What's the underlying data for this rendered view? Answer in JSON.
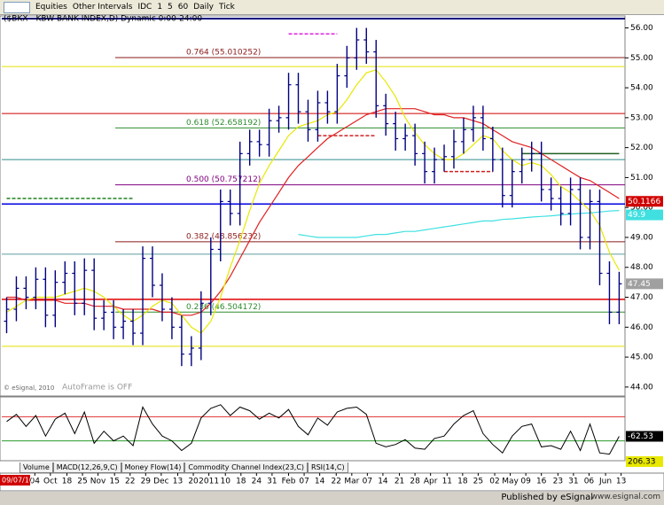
{
  "toolbar": {
    "items": [
      "Equities",
      "Other Intervals",
      "IDC",
      "1",
      "5",
      "60",
      "Daily",
      "Tick"
    ]
  },
  "chart_data": [
    {
      "type": "ohlc",
      "title": "($BKX - KBW BANK INDEX,D) Dynamic 0:00-24:00",
      "color": "#000080",
      "open": [
        46.2,
        46.6,
        47.3,
        47.0,
        47.6,
        46.4,
        47.5,
        47.8,
        46.8,
        47.9,
        46.3,
        46.5,
        46.0,
        46.2,
        45.8,
        48.3,
        47.4,
        46.6,
        46.0,
        45.1,
        45.3,
        46.8,
        48.6,
        50.2,
        49.8,
        51.8,
        52.2,
        52.1,
        52.9,
        53.0,
        54.1,
        53.2,
        52.6,
        53.5,
        53.2,
        54.4,
        55.0,
        55.6,
        55.2,
        53.4,
        52.8,
        52.3,
        52.4,
        51.8,
        51.2,
        51.6,
        51.7,
        52.2,
        52.6,
        53.0,
        52.3,
        51.6,
        50.4,
        51.2,
        51.6,
        51.8,
        50.6,
        50.3,
        49.8,
        50.6,
        49.0,
        50.2,
        47.8,
        46.5
      ],
      "high": [
        47.0,
        47.7,
        47.7,
        48.0,
        48.0,
        47.9,
        48.2,
        48.2,
        48.3,
        48.3,
        46.9,
        46.9,
        46.6,
        46.6,
        48.7,
        48.7,
        47.8,
        47.0,
        46.4,
        45.7,
        47.2,
        49.0,
        50.6,
        50.6,
        52.2,
        52.6,
        52.6,
        53.3,
        53.4,
        54.5,
        54.5,
        53.6,
        53.9,
        53.9,
        54.8,
        55.4,
        56.0,
        56.0,
        55.6,
        53.8,
        53.2,
        52.8,
        52.8,
        52.2,
        52.0,
        52.1,
        52.6,
        53.0,
        53.4,
        53.4,
        52.7,
        52.0,
        51.6,
        52.0,
        52.2,
        52.2,
        51.0,
        50.7,
        51.0,
        51.0,
        50.6,
        50.6,
        48.2,
        47.85
      ],
      "low": [
        45.8,
        46.2,
        46.6,
        46.6,
        46.0,
        46.0,
        47.1,
        46.4,
        46.4,
        45.9,
        45.9,
        45.6,
        45.6,
        45.4,
        45.4,
        47.0,
        46.2,
        45.6,
        44.7,
        44.7,
        44.9,
        46.4,
        48.2,
        49.4,
        49.4,
        51.4,
        51.7,
        51.7,
        52.5,
        52.6,
        52.8,
        52.2,
        52.2,
        52.8,
        52.8,
        54.0,
        54.6,
        54.8,
        53.0,
        52.4,
        51.9,
        51.9,
        51.4,
        50.8,
        50.8,
        51.2,
        51.3,
        51.8,
        52.2,
        51.9,
        51.2,
        50.0,
        50.0,
        50.8,
        51.2,
        50.2,
        49.9,
        49.4,
        49.4,
        48.6,
        48.6,
        47.4,
        46.1,
        46.1
      ],
      "close": [
        46.6,
        47.3,
        47.0,
        47.6,
        46.4,
        47.5,
        47.8,
        46.8,
        47.9,
        46.3,
        46.5,
        46.0,
        46.2,
        45.8,
        48.3,
        47.4,
        46.6,
        46.0,
        45.1,
        45.3,
        46.8,
        48.6,
        50.2,
        49.8,
        51.8,
        52.2,
        52.1,
        52.9,
        53.0,
        54.1,
        53.2,
        52.6,
        53.5,
        53.2,
        54.4,
        55.0,
        55.6,
        55.2,
        53.4,
        52.8,
        52.3,
        52.4,
        51.8,
        51.2,
        51.6,
        51.7,
        52.2,
        52.6,
        53.0,
        52.3,
        51.6,
        50.4,
        51.2,
        51.6,
        51.8,
        50.6,
        50.3,
        49.8,
        50.6,
        49.0,
        50.2,
        47.8,
        46.5,
        47.45
      ],
      "overlays": [
        {
          "color": "#e02020",
          "values": [
            47.0,
            47.0,
            46.9,
            46.9,
            46.9,
            46.9,
            46.8,
            46.8,
            46.8,
            46.7,
            46.7,
            46.7,
            46.6,
            46.6,
            46.6,
            46.6,
            46.5,
            46.5,
            46.4,
            46.4,
            46.5,
            46.8,
            47.2,
            47.7,
            48.3,
            48.9,
            49.5,
            50.0,
            50.5,
            51.0,
            51.4,
            51.7,
            52.0,
            52.3,
            52.5,
            52.7,
            52.9,
            53.1,
            53.2,
            53.3,
            53.3,
            53.3,
            53.3,
            53.2,
            53.1,
            53.1,
            53.0,
            53.0,
            52.9,
            52.8,
            52.6,
            52.4,
            52.2,
            52.1,
            52.0,
            51.8,
            51.6,
            51.4,
            51.2,
            51.0,
            50.9,
            50.7,
            50.5,
            50.3
          ]
        },
        {
          "color": "#e8e800",
          "values": [
            46.5,
            46.7,
            46.9,
            47.0,
            47.0,
            47.0,
            47.1,
            47.2,
            47.3,
            47.2,
            47.0,
            46.7,
            46.4,
            46.2,
            46.4,
            46.7,
            46.9,
            46.8,
            46.4,
            46.0,
            45.8,
            46.2,
            47.0,
            48.0,
            48.9,
            49.9,
            50.8,
            51.4,
            51.9,
            52.4,
            52.7,
            52.8,
            52.9,
            53.1,
            53.2,
            53.6,
            54.1,
            54.5,
            54.6,
            54.2,
            53.7,
            53.0,
            52.5,
            52.1,
            51.8,
            51.6,
            51.6,
            51.8,
            52.1,
            52.4,
            52.3,
            51.9,
            51.6,
            51.4,
            51.5,
            51.4,
            51.1,
            50.7,
            50.5,
            50.2,
            49.9,
            49.4,
            48.5,
            47.9
          ]
        },
        {
          "color": "#40e0e0",
          "values": [
            null,
            null,
            null,
            null,
            null,
            null,
            null,
            null,
            null,
            null,
            null,
            null,
            null,
            null,
            null,
            null,
            null,
            null,
            null,
            null,
            null,
            null,
            null,
            null,
            null,
            null,
            null,
            null,
            null,
            null,
            49.1,
            49.05,
            49.0,
            49.0,
            49.0,
            49.0,
            49.0,
            49.05,
            49.1,
            49.1,
            49.15,
            49.2,
            49.2,
            49.25,
            49.3,
            49.35,
            49.4,
            49.45,
            49.5,
            49.55,
            49.55,
            49.6,
            49.62,
            49.65,
            49.68,
            49.7,
            49.72,
            49.75,
            49.78,
            49.8,
            49.82,
            49.85,
            49.88,
            49.9
          ]
        }
      ],
      "levels": [
        {
          "value": 56.31,
          "color": "#000080",
          "width": 2
        },
        {
          "value": 54.71,
          "color": "#e0e000",
          "width": 1
        },
        {
          "value": 53.14,
          "color": "#d00000",
          "width": 1
        },
        {
          "value": 51.6,
          "color": "#2e8b8b",
          "width": 1
        },
        {
          "value": 50.1166,
          "color": "#0000e0",
          "width": 1.5
        },
        {
          "value": 48.44,
          "color": "#5f9ea0",
          "width": 1
        },
        {
          "value": 46.93,
          "color": "#e00000",
          "width": 1.5
        },
        {
          "value": 45.36,
          "color": "#e0e000",
          "width": 1
        }
      ],
      "fib_levels": [
        {
          "value": 55.010252,
          "label": "0.764 (55.010252)",
          "color": "#8b1a1a"
        },
        {
          "value": 52.658192,
          "label": "0.618 (52.658192)",
          "color": "#2e8b2e"
        },
        {
          "value": 50.757212,
          "label": "0.500 (50.757212)",
          "color": "#800080"
        },
        {
          "value": 48.856232,
          "label": "0.382 (48.856232)",
          "color": "#8b1a1a"
        },
        {
          "value": 46.504172,
          "label": "0.236 (46.504172)",
          "color": "#2e8b2e"
        }
      ],
      "segments": [
        {
          "value": 55.8,
          "from": 29,
          "to": 34,
          "color": "#e020e0",
          "dashed": true
        },
        {
          "value": 50.3,
          "from": 0,
          "to": 13,
          "color": "#208020",
          "dashed": true
        },
        {
          "value": 52.4,
          "from": 32,
          "to": 38,
          "color": "#d02020",
          "dashed": true
        },
        {
          "value": 51.2,
          "from": 45,
          "to": 50,
          "color": "#d02020",
          "dashed": true
        },
        {
          "value": 51.8,
          "from": 53,
          "to": 63,
          "color": "#206020",
          "dashed": false
        }
      ],
      "cursor_date": "09/07/10",
      "notes": [
        "AutoFrame is OFF",
        "© eSignal, 2010"
      ],
      "xlim": [
        -0.5,
        63.6
      ],
      "xticks": [
        {
          "value": 2.9,
          "label": "04"
        },
        {
          "value": 4.5,
          "label": "Oct"
        },
        {
          "value": 6.2,
          "label": "18"
        },
        {
          "value": 7.8,
          "label": "25"
        },
        {
          "value": 9.4,
          "label": "Nov"
        },
        {
          "value": 11.1,
          "label": "15"
        },
        {
          "value": 12.7,
          "label": "22"
        },
        {
          "value": 14.3,
          "label": "29"
        },
        {
          "value": 15.9,
          "label": "Dec"
        },
        {
          "value": 17.6,
          "label": "13"
        },
        {
          "value": 19.2,
          "label": "20"
        },
        {
          "value": 20.8,
          "label": "2011"
        },
        {
          "value": 22.5,
          "label": "10"
        },
        {
          "value": 24.1,
          "label": "18"
        },
        {
          "value": 25.7,
          "label": "24"
        },
        {
          "value": 27.3,
          "label": "31"
        },
        {
          "value": 29.0,
          "label": "Feb"
        },
        {
          "value": 30.6,
          "label": "07"
        },
        {
          "value": 32.2,
          "label": "14"
        },
        {
          "value": 33.9,
          "label": "22"
        },
        {
          "value": 35.5,
          "label": "Mar"
        },
        {
          "value": 37.1,
          "label": "07"
        },
        {
          "value": 38.7,
          "label": "14"
        },
        {
          "value": 40.4,
          "label": "21"
        },
        {
          "value": 42.0,
          "label": "28"
        },
        {
          "value": 43.6,
          "label": "Apr"
        },
        {
          "value": 45.3,
          "label": "11"
        },
        {
          "value": 46.9,
          "label": "18"
        },
        {
          "value": 48.5,
          "label": "25"
        },
        {
          "value": 50.2,
          "label": "02"
        },
        {
          "value": 51.8,
          "label": "May"
        },
        {
          "value": 53.4,
          "label": "09"
        },
        {
          "value": 55.0,
          "label": "16"
        },
        {
          "value": 56.7,
          "label": "23"
        },
        {
          "value": 58.3,
          "label": "31"
        },
        {
          "value": 59.9,
          "label": "06"
        },
        {
          "value": 61.6,
          "label": "Jun"
        },
        {
          "value": 63.2,
          "label": "13"
        }
      ],
      "ylim": [
        43.7,
        56.4
      ],
      "yticks": [
        {
          "value": 44,
          "label": "44.00"
        },
        {
          "value": 45,
          "label": "45.00"
        },
        {
          "value": 46,
          "label": "46.00"
        },
        {
          "value": 47,
          "label": "47.00"
        },
        {
          "value": 48,
          "label": "48.00"
        },
        {
          "value": 49,
          "label": "49.00"
        },
        {
          "value": 50,
          "label": "50.00"
        },
        {
          "value": 51,
          "label": "51.00"
        },
        {
          "value": 52,
          "label": "52.00"
        },
        {
          "value": 53,
          "label": "53.00"
        },
        {
          "value": 54,
          "label": "54.00"
        },
        {
          "value": 55,
          "label": "55.00"
        },
        {
          "value": 56,
          "label": "56.00"
        }
      ]
    },
    {
      "type": "line",
      "color": "#000000",
      "values": [
        60,
        120,
        20,
        110,
        -60,
        80,
        130,
        -40,
        140,
        -120,
        -20,
        -100,
        -60,
        -140,
        180,
        40,
        -60,
        -100,
        -180,
        -120,
        90,
        170,
        200,
        110,
        180,
        150,
        80,
        130,
        90,
        160,
        20,
        -50,
        90,
        30,
        140,
        170,
        180,
        120,
        -120,
        -150,
        -130,
        -90,
        -160,
        -170,
        -80,
        -60,
        40,
        110,
        150,
        -40,
        -130,
        -200,
        -60,
        20,
        40,
        -150,
        -140,
        -170,
        -20,
        -180,
        40,
        -200,
        -210,
        -62.53
      ],
      "levels": [
        {
          "value": 100,
          "color": "#e03030"
        },
        {
          "value": -100,
          "color": "#2a9a2a"
        }
      ],
      "other_readout": 206.33,
      "xlim": [
        -0.5,
        63.6
      ],
      "ylim": [
        -250,
        250
      ]
    }
  ],
  "tabs": [
    "Volume",
    "MACD(12,26,9,C)",
    "Money Flow(14)",
    "Commodity Channel Index(23,C)",
    "RSI(14,C)"
  ],
  "footer": {
    "publisher": "Published by eSignal",
    "url": "www.esignal.com"
  }
}
